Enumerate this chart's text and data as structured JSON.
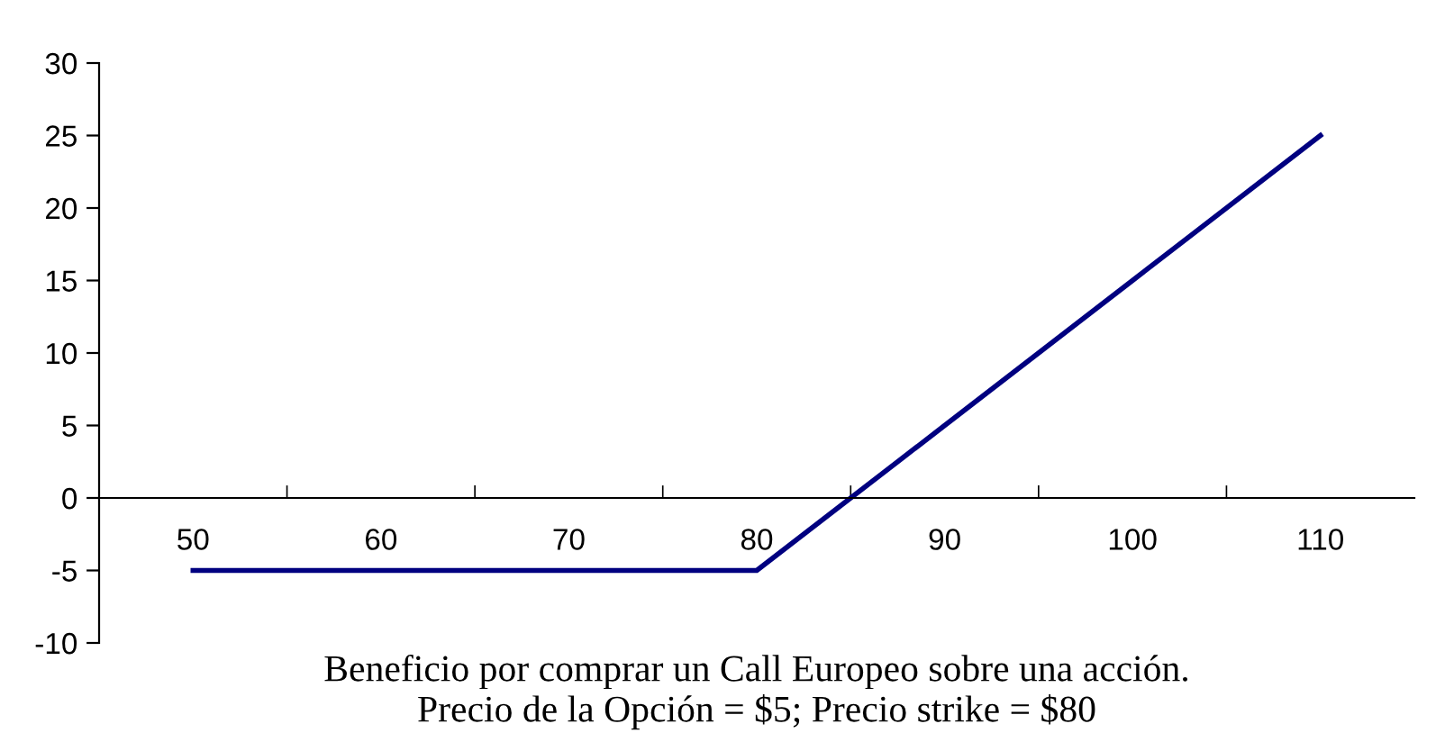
{
  "chart_data": {
    "type": "line",
    "xlabel": "Beneficio por comprar un Call Europeo sobre una acción.\nPrecio de la Opción = $5; Precio strike = $80",
    "categories": [
      "50",
      "60",
      "70",
      "80",
      "90",
      "100",
      "110"
    ],
    "series": [
      {
        "color": "#000080",
        "values": [
          -5,
          -5,
          -5,
          -5,
          5,
          15,
          25
        ]
      }
    ],
    "ylim": [
      -10,
      30
    ],
    "yticks": [
      -10,
      -5,
      0,
      5,
      10,
      15,
      20,
      25,
      30
    ],
    "grid": false,
    "legend": false
  }
}
